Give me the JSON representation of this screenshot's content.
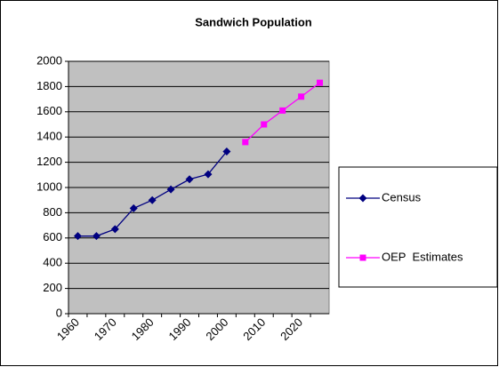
{
  "chart_data": {
    "type": "line",
    "title": "Sandwich Population",
    "categories": [
      "1960",
      null,
      "1970",
      null,
      "1980",
      null,
      "1990",
      null,
      "2000",
      null,
      "2010",
      null,
      "2020",
      null
    ],
    "series": [
      {
        "name": "Census",
        "color": "#000080",
        "marker": "diamond",
        "values": [
          615,
          615,
          670,
          835,
          900,
          985,
          1065,
          1105,
          1285,
          null,
          null,
          null,
          null,
          null
        ]
      },
      {
        "name": "OEP  Estimates",
        "color": "#ff00ff",
        "marker": "square",
        "values": [
          null,
          null,
          null,
          null,
          null,
          null,
          null,
          null,
          null,
          1360,
          1500,
          1610,
          1720,
          1830
        ]
      }
    ],
    "ylim": [
      0,
      2000
    ],
    "yticks": [
      0,
      200,
      400,
      600,
      800,
      1000,
      1200,
      1400,
      1600,
      1800,
      2000
    ],
    "grid": true,
    "legend": "right",
    "plot_background": "#c0c0c0"
  }
}
